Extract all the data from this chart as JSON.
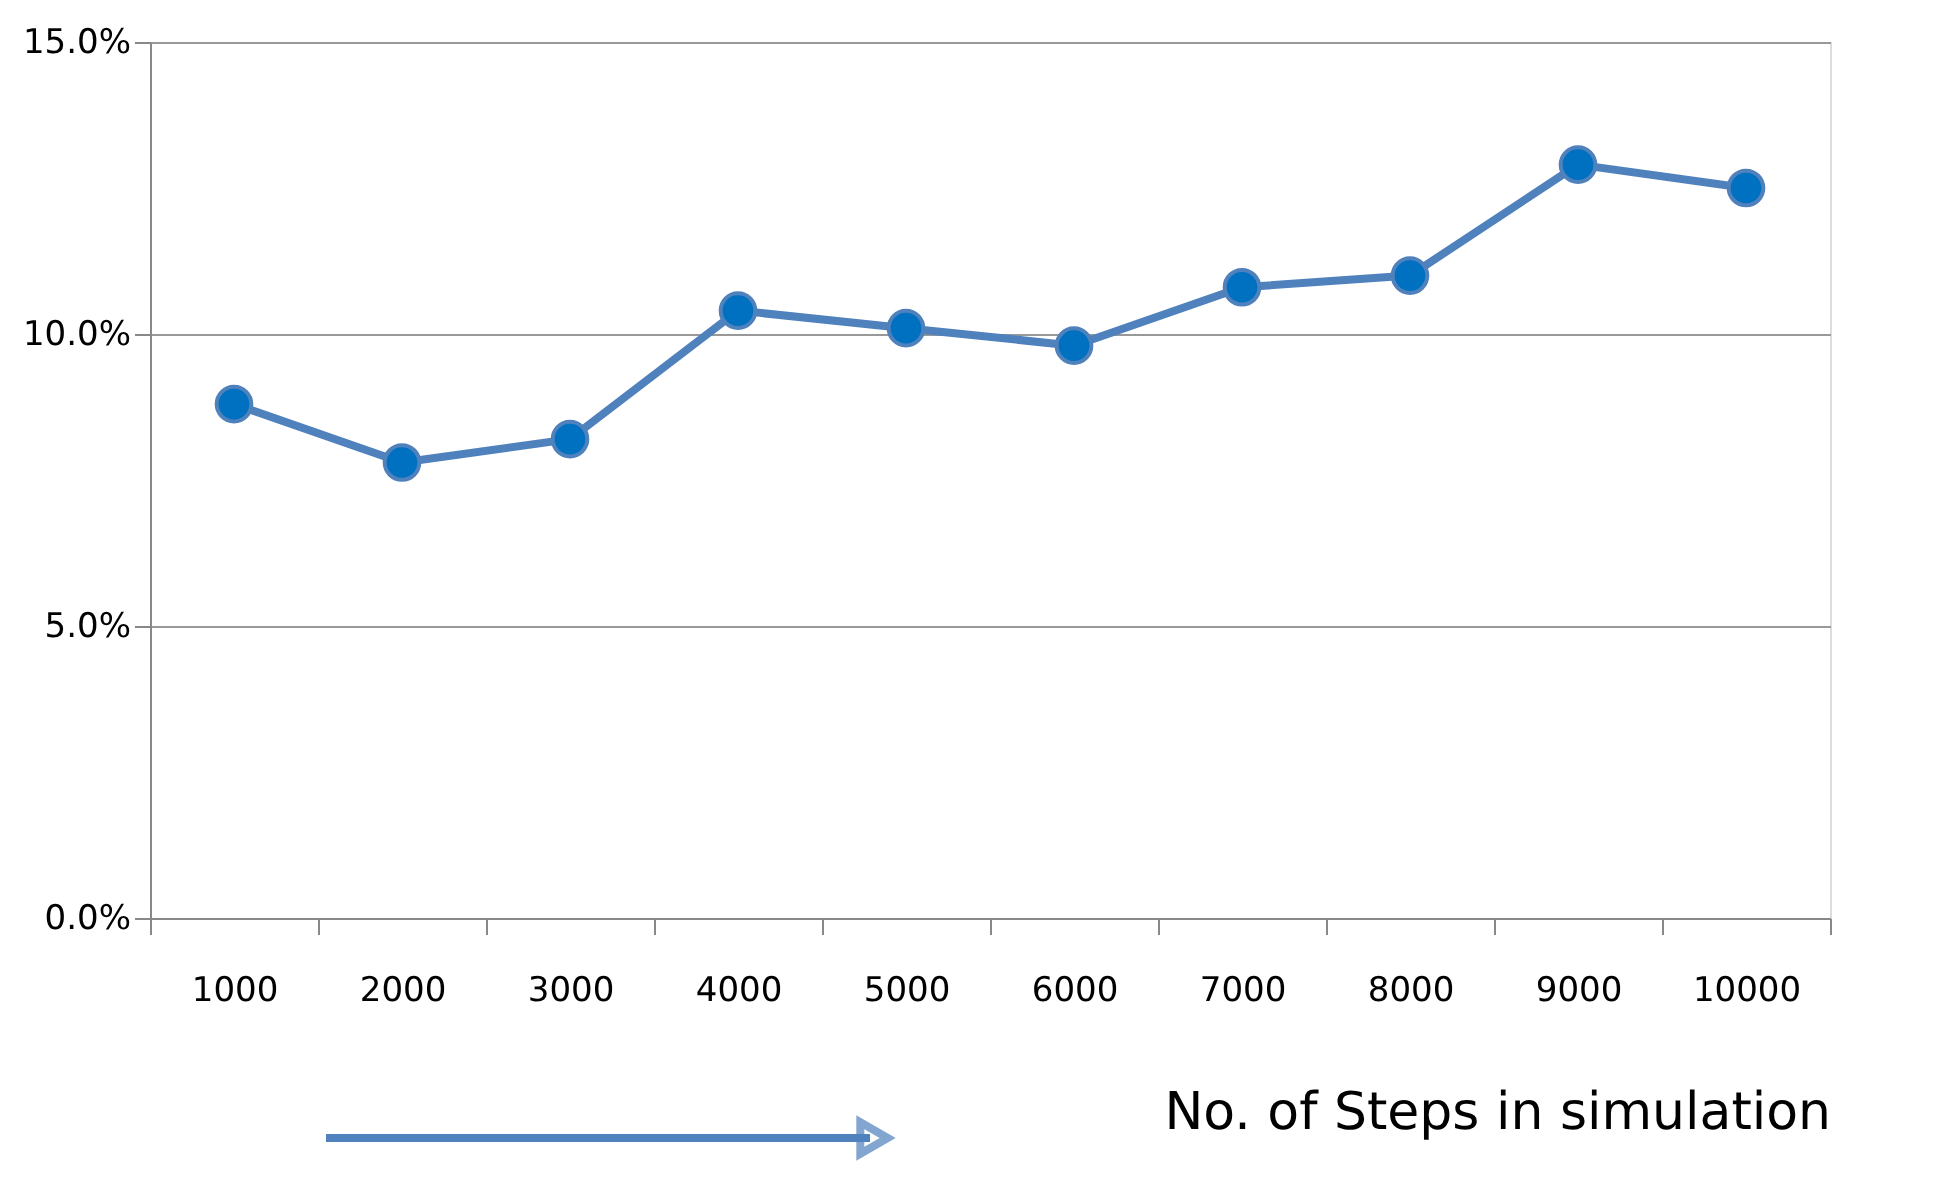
{
  "chart_data": {
    "type": "line",
    "categories": [
      "1000",
      "2000",
      "3000",
      "4000",
      "5000",
      "6000",
      "7000",
      "8000",
      "9000",
      "10000"
    ],
    "series": [
      {
        "color": "#4f81bd",
        "values": [
          8.8,
          7.8,
          8.2,
          10.4,
          10.1,
          9.8,
          10.8,
          11.0,
          12.9,
          12.5
        ]
      }
    ],
    "xlabel": "No. of Steps in simulation",
    "ylim": [
      0,
      15
    ],
    "yticks": [
      {
        "value": 0,
        "label": "0.0%"
      },
      {
        "value": 5,
        "label": "5.0%"
      },
      {
        "value": 10,
        "label": "10.0%"
      },
      {
        "value": 15,
        "label": "15.0%"
      }
    ],
    "grid": "y",
    "marker": "circle",
    "line_style": "solid"
  }
}
